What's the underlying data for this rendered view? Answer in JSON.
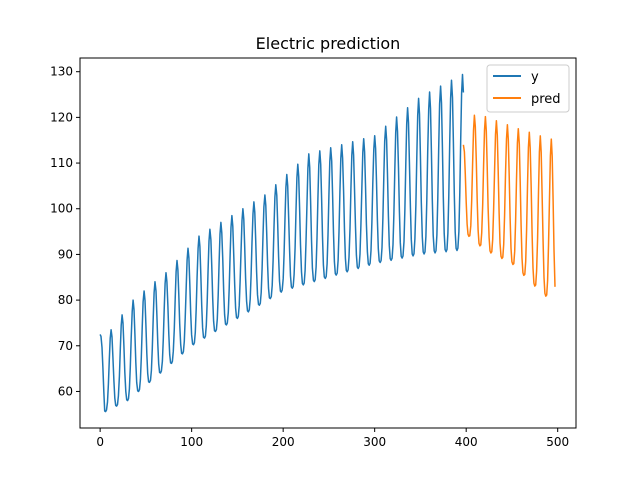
{
  "chart_data": {
    "type": "line",
    "title": "Electric prediction",
    "xlabel": "",
    "ylabel": "",
    "xlim": [
      -22,
      520
    ],
    "ylim": [
      52,
      133
    ],
    "xticks": [
      0,
      100,
      200,
      300,
      400,
      500
    ],
    "yticks": [
      60,
      70,
      80,
      90,
      100,
      110,
      120,
      130
    ],
    "legend_position": "top-right",
    "grid": false,
    "series": [
      {
        "name": "y",
        "color": "#1f77b4",
        "x_start": 0,
        "x_end": 397,
        "period": 12,
        "trough": [
          [
            0,
            70.5
          ],
          [
            5,
            55.5
          ],
          [
            30,
            58
          ],
          [
            60,
            63
          ],
          [
            100,
            70
          ],
          [
            150,
            76
          ],
          [
            200,
            82
          ],
          [
            250,
            85
          ],
          [
            300,
            88
          ],
          [
            350,
            90
          ],
          [
            397,
            91
          ]
        ],
        "peak": [
          [
            0,
            72.5
          ],
          [
            12,
            73.5
          ],
          [
            36,
            80
          ],
          [
            72,
            86
          ],
          [
            108,
            94
          ],
          [
            144,
            98.5
          ],
          [
            180,
            103
          ],
          [
            228,
            112
          ],
          [
            264,
            114
          ],
          [
            300,
            116
          ],
          [
            350,
            124.5
          ],
          [
            397,
            129.5
          ]
        ]
      },
      {
        "name": "pred",
        "color": "#ff7f0e",
        "x_start": 397,
        "x_end": 497,
        "period": 12,
        "trough": [
          [
            397,
            95
          ],
          [
            420,
            91
          ],
          [
            450,
            88
          ],
          [
            470,
            84
          ],
          [
            497,
            79
          ]
        ],
        "peak": [
          [
            397,
            114
          ],
          [
            410,
            121
          ],
          [
            450,
            118
          ],
          [
            480,
            116
          ],
          [
            497,
            115
          ]
        ]
      }
    ]
  }
}
